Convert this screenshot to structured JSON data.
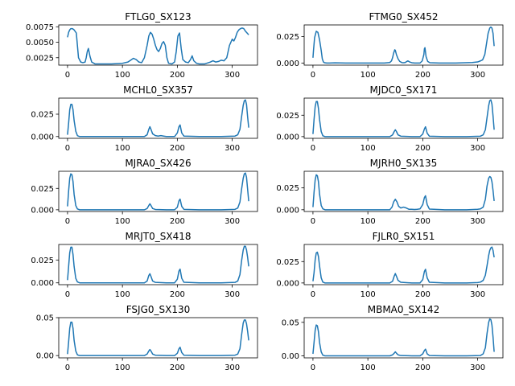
{
  "figure": {
    "line_color": "#1f77b4"
  },
  "chart_data": [
    {
      "type": "line",
      "title": "FTLG0_SX123",
      "xlim": [
        -16,
        346
      ],
      "ylim": [
        0.0013,
        0.0078
      ],
      "xticks": [
        0,
        100,
        200,
        300
      ],
      "yticks": [
        0.0025,
        0.005,
        0.0075
      ],
      "ytick_labels": [
        "0.0025",
        "0.0050",
        "0.0075"
      ],
      "x": [
        0,
        2,
        4,
        6,
        9,
        12,
        16,
        20,
        24,
        28,
        32,
        34,
        36,
        38,
        41,
        44,
        50,
        60,
        80,
        100,
        110,
        115,
        120,
        125,
        130,
        135,
        140,
        145,
        148,
        151,
        154,
        157,
        160,
        163,
        166,
        169,
        172,
        175,
        178,
        181,
        184,
        190,
        195,
        198,
        201,
        204,
        207,
        210,
        215,
        220,
        224,
        227,
        230,
        235,
        240,
        250,
        260,
        265,
        270,
        275,
        280,
        285,
        290,
        295,
        300,
        303,
        306,
        309,
        312,
        315,
        318,
        321,
        324,
        327,
        330
      ],
      "y": [
        0.0058,
        0.0066,
        0.007,
        0.0072,
        0.0072,
        0.007,
        0.0065,
        0.0025,
        0.0018,
        0.0017,
        0.0018,
        0.0025,
        0.0035,
        0.004,
        0.0027,
        0.0018,
        0.0015,
        0.0015,
        0.0015,
        0.0016,
        0.0018,
        0.0021,
        0.0024,
        0.0022,
        0.0018,
        0.0017,
        0.0025,
        0.0045,
        0.006,
        0.0066,
        0.0063,
        0.0055,
        0.0045,
        0.0038,
        0.0035,
        0.004,
        0.0048,
        0.0051,
        0.0045,
        0.0025,
        0.0016,
        0.0015,
        0.0018,
        0.0035,
        0.006,
        0.0065,
        0.004,
        0.0022,
        0.0018,
        0.0017,
        0.0022,
        0.0028,
        0.002,
        0.0016,
        0.0015,
        0.0015,
        0.0018,
        0.002,
        0.0018,
        0.0019,
        0.0021,
        0.002,
        0.0025,
        0.0045,
        0.0055,
        0.0052,
        0.0058,
        0.0066,
        0.007,
        0.0072,
        0.0073,
        0.0072,
        0.0068,
        0.0065,
        0.0062
      ]
    },
    {
      "type": "line",
      "title": "FTMG0_SX452",
      "xlim": [
        -16,
        346
      ],
      "ylim": [
        -0.002,
        0.036
      ],
      "xticks": [
        0,
        100,
        200,
        300
      ],
      "yticks": [
        0.0,
        0.025
      ],
      "ytick_labels": [
        "0.000",
        "0.025"
      ],
      "x": [
        0,
        1,
        3,
        6,
        9,
        12,
        15,
        17,
        19,
        21,
        25,
        30,
        40,
        60,
        80,
        100,
        130,
        140,
        143,
        145,
        147,
        149,
        150,
        152,
        155,
        158,
        162,
        165,
        168,
        171,
        173,
        176,
        180,
        185,
        195,
        199,
        202,
        203,
        204,
        206,
        209,
        213,
        230,
        260,
        290,
        300,
        305,
        309,
        313,
        316,
        319,
        322,
        324,
        326,
        328,
        330
      ],
      "y": [
        0.005,
        0.012,
        0.024,
        0.03,
        0.029,
        0.022,
        0.012,
        0.004,
        0.001,
        0.0003,
        0.0,
        0.0,
        0.0002,
        0.0,
        0.0,
        0.0,
        0.0,
        0.0005,
        0.002,
        0.005,
        0.0095,
        0.0125,
        0.012,
        0.008,
        0.004,
        0.0015,
        0.0004,
        0.0003,
        0.0005,
        0.0015,
        0.002,
        0.001,
        0.0003,
        0.0,
        0.0,
        0.002,
        0.008,
        0.0135,
        0.0145,
        0.006,
        0.0015,
        0.0003,
        0.0,
        0.0,
        0.0005,
        0.001,
        0.002,
        0.003,
        0.008,
        0.018,
        0.028,
        0.033,
        0.034,
        0.033,
        0.028,
        0.016
      ]
    },
    {
      "type": "line",
      "title": "MCHL0_SX357",
      "xlim": [
        -16,
        346
      ],
      "ylim": [
        -0.002,
        0.043
      ],
      "xticks": [
        0,
        100,
        200,
        300
      ],
      "yticks": [
        0.0,
        0.025
      ],
      "ytick_labels": [
        "0.000",
        "0.025"
      ],
      "x": [
        0,
        2,
        4,
        6,
        8,
        10,
        12,
        15,
        18,
        22,
        30,
        60,
        100,
        140,
        145,
        148,
        150,
        152,
        155,
        160,
        165,
        170,
        175,
        180,
        195,
        200,
        203,
        205,
        208,
        212,
        240,
        280,
        305,
        310,
        314,
        317,
        320,
        322,
        324,
        326,
        328,
        330
      ],
      "y": [
        0.002,
        0.015,
        0.03,
        0.036,
        0.036,
        0.03,
        0.018,
        0.006,
        0.001,
        0.0,
        0.0,
        0.0,
        0.0,
        0.0,
        0.002,
        0.008,
        0.011,
        0.008,
        0.003,
        0.001,
        0.0005,
        0.001,
        0.0005,
        0.0,
        0.0,
        0.004,
        0.011,
        0.013,
        0.004,
        0.0005,
        0.0,
        0.0,
        0.0005,
        0.002,
        0.008,
        0.022,
        0.035,
        0.04,
        0.041,
        0.036,
        0.022,
        0.01
      ]
    },
    {
      "type": "line",
      "title": "MJDC0_SX171",
      "xlim": [
        -16,
        346
      ],
      "ylim": [
        -0.002,
        0.045
      ],
      "xticks": [
        0,
        100,
        200,
        300
      ],
      "yticks": [
        0.0,
        0.025
      ],
      "ytick_labels": [
        "0.000",
        "0.025"
      ],
      "x": [
        0,
        2,
        4,
        6,
        8,
        10,
        12,
        15,
        18,
        22,
        30,
        60,
        100,
        140,
        145,
        148,
        150,
        152,
        155,
        160,
        180,
        195,
        200,
        203,
        205,
        208,
        212,
        240,
        280,
        305,
        310,
        314,
        317,
        320,
        322,
        324,
        326,
        328,
        330
      ],
      "y": [
        0.003,
        0.02,
        0.035,
        0.041,
        0.041,
        0.033,
        0.02,
        0.006,
        0.001,
        0.0,
        0.0,
        0.0,
        0.0,
        0.0,
        0.002,
        0.006,
        0.008,
        0.006,
        0.002,
        0.0005,
        0.0,
        0.0,
        0.003,
        0.009,
        0.0115,
        0.004,
        0.0005,
        0.0,
        0.0,
        0.0005,
        0.002,
        0.008,
        0.022,
        0.036,
        0.042,
        0.043,
        0.038,
        0.024,
        0.008
      ]
    },
    {
      "type": "line",
      "title": "MJRA0_SX426",
      "xlim": [
        -16,
        346
      ],
      "ylim": [
        -0.002,
        0.045
      ],
      "xticks": [
        0,
        100,
        200,
        300
      ],
      "yticks": [
        0.0,
        0.025
      ],
      "ytick_labels": [
        "0.000",
        "0.025"
      ],
      "x": [
        0,
        2,
        4,
        6,
        8,
        10,
        12,
        15,
        18,
        22,
        30,
        60,
        100,
        140,
        145,
        148,
        150,
        152,
        155,
        160,
        180,
        195,
        200,
        203,
        205,
        208,
        212,
        240,
        280,
        305,
        310,
        314,
        317,
        320,
        322,
        324,
        326,
        328,
        330
      ],
      "y": [
        0.004,
        0.022,
        0.037,
        0.042,
        0.041,
        0.033,
        0.018,
        0.005,
        0.001,
        0.0,
        0.0,
        0.0,
        0.0,
        0.0,
        0.0015,
        0.005,
        0.007,
        0.005,
        0.0015,
        0.0004,
        0.0,
        0.0,
        0.003,
        0.0105,
        0.0125,
        0.004,
        0.0005,
        0.0,
        0.0,
        0.0005,
        0.002,
        0.009,
        0.024,
        0.037,
        0.042,
        0.043,
        0.038,
        0.024,
        0.01
      ]
    },
    {
      "type": "line",
      "title": "MJRH0_SX135",
      "xlim": [
        -16,
        346
      ],
      "ylim": [
        -0.002,
        0.044
      ],
      "xticks": [
        0,
        100,
        200,
        300
      ],
      "yticks": [
        0.0,
        0.025
      ],
      "ytick_labels": [
        "0.000",
        "0.025"
      ],
      "x": [
        0,
        2,
        4,
        6,
        8,
        10,
        12,
        15,
        18,
        22,
        30,
        60,
        100,
        140,
        144,
        147,
        150,
        153,
        156,
        160,
        165,
        170,
        175,
        180,
        185,
        190,
        195,
        200,
        203,
        205,
        208,
        212,
        240,
        280,
        300,
        305,
        310,
        314,
        317,
        320,
        322,
        324,
        326,
        328,
        330
      ],
      "y": [
        0.003,
        0.02,
        0.034,
        0.04,
        0.039,
        0.032,
        0.018,
        0.005,
        0.001,
        0.0,
        0.0,
        0.0,
        0.0,
        0.0,
        0.003,
        0.009,
        0.012,
        0.009,
        0.004,
        0.002,
        0.003,
        0.002,
        0.0005,
        0.0005,
        0.0003,
        0.0005,
        0.001,
        0.006,
        0.014,
        0.016,
        0.006,
        0.0008,
        0.0,
        0.0,
        0.0005,
        0.001,
        0.003,
        0.012,
        0.027,
        0.036,
        0.038,
        0.037,
        0.032,
        0.022,
        0.01
      ]
    },
    {
      "type": "line",
      "title": "MRJT0_SX418",
      "xlim": [
        -16,
        346
      ],
      "ylim": [
        -0.002,
        0.042
      ],
      "xticks": [
        0,
        100,
        200,
        300
      ],
      "yticks": [
        0.0,
        0.025
      ],
      "ytick_labels": [
        "0.000",
        "0.025"
      ],
      "x": [
        0,
        2,
        4,
        6,
        8,
        10,
        12,
        15,
        18,
        22,
        30,
        60,
        100,
        140,
        145,
        148,
        150,
        152,
        155,
        160,
        180,
        195,
        200,
        203,
        205,
        208,
        212,
        240,
        280,
        305,
        310,
        314,
        317,
        320,
        322,
        324,
        326,
        328,
        330
      ],
      "y": [
        0.003,
        0.018,
        0.033,
        0.039,
        0.039,
        0.031,
        0.018,
        0.005,
        0.001,
        0.0,
        0.0,
        0.0,
        0.0,
        0.0,
        0.002,
        0.008,
        0.01,
        0.007,
        0.002,
        0.0005,
        0.0,
        0.0,
        0.004,
        0.013,
        0.015,
        0.005,
        0.0006,
        0.0,
        0.0,
        0.0005,
        0.002,
        0.009,
        0.024,
        0.036,
        0.04,
        0.04,
        0.036,
        0.028,
        0.018
      ]
    },
    {
      "type": "line",
      "title": "FJLR0_SX151",
      "xlim": [
        -16,
        346
      ],
      "ylim": [
        -0.002,
        0.045
      ],
      "xticks": [
        0,
        100,
        200,
        300
      ],
      "yticks": [
        0.0,
        0.025
      ],
      "ytick_labels": [
        "0.000",
        "0.025"
      ],
      "x": [
        0,
        2,
        4,
        6,
        8,
        10,
        12,
        15,
        18,
        22,
        30,
        60,
        100,
        140,
        145,
        148,
        150,
        152,
        155,
        160,
        180,
        195,
        200,
        203,
        205,
        208,
        212,
        240,
        280,
        300,
        305,
        310,
        314,
        317,
        320,
        322,
        324,
        326,
        328,
        330
      ],
      "y": [
        0.002,
        0.012,
        0.027,
        0.035,
        0.036,
        0.031,
        0.02,
        0.006,
        0.001,
        0.0,
        0.0,
        0.0,
        0.0,
        0.0,
        0.002,
        0.008,
        0.011,
        0.008,
        0.003,
        0.0008,
        0.0,
        0.0,
        0.004,
        0.0135,
        0.016,
        0.006,
        0.0008,
        0.0,
        0.0,
        0.0005,
        0.001,
        0.003,
        0.009,
        0.02,
        0.032,
        0.038,
        0.041,
        0.042,
        0.038,
        0.03
      ]
    },
    {
      "type": "line",
      "title": "FSJG0_SX130",
      "xlim": [
        -16,
        346
      ],
      "ylim": [
        -0.003,
        0.05
      ],
      "xticks": [
        0,
        100,
        200,
        300
      ],
      "yticks": [
        0.0,
        0.05
      ],
      "ytick_labels": [
        "0.00",
        "0.05"
      ],
      "x": [
        0,
        2,
        4,
        6,
        8,
        10,
        12,
        15,
        18,
        22,
        30,
        60,
        100,
        140,
        145,
        148,
        150,
        152,
        155,
        160,
        180,
        195,
        200,
        203,
        205,
        208,
        212,
        240,
        280,
        305,
        310,
        314,
        317,
        320,
        322,
        324,
        326,
        328,
        330
      ],
      "y": [
        0.002,
        0.018,
        0.036,
        0.044,
        0.044,
        0.036,
        0.02,
        0.006,
        0.001,
        0.0,
        0.0,
        0.0,
        0.0,
        0.0,
        0.002,
        0.006,
        0.008,
        0.006,
        0.002,
        0.0005,
        0.0,
        0.0,
        0.003,
        0.009,
        0.011,
        0.004,
        0.0005,
        0.0,
        0.0,
        0.0005,
        0.002,
        0.009,
        0.027,
        0.043,
        0.047,
        0.047,
        0.042,
        0.032,
        0.02
      ]
    },
    {
      "type": "line",
      "title": "MBMA0_SX142",
      "xlim": [
        -16,
        346
      ],
      "ylim": [
        -0.003,
        0.057
      ],
      "xticks": [
        0,
        100,
        200,
        300
      ],
      "yticks": [
        0.0,
        0.05
      ],
      "ytick_labels": [
        "0.00",
        "0.05"
      ],
      "x": [
        0,
        2,
        4,
        6,
        8,
        10,
        12,
        15,
        18,
        22,
        30,
        60,
        100,
        140,
        145,
        148,
        150,
        152,
        155,
        160,
        180,
        195,
        200,
        203,
        205,
        208,
        212,
        240,
        280,
        305,
        310,
        314,
        317,
        320,
        322,
        324,
        326,
        328,
        330
      ],
      "y": [
        0.003,
        0.02,
        0.038,
        0.046,
        0.045,
        0.036,
        0.02,
        0.006,
        0.001,
        0.0,
        0.0,
        0.0,
        0.0,
        0.0,
        0.0015,
        0.004,
        0.006,
        0.004,
        0.0015,
        0.0004,
        0.0,
        0.0,
        0.003,
        0.008,
        0.01,
        0.003,
        0.0005,
        0.0,
        0.0,
        0.0005,
        0.003,
        0.012,
        0.033,
        0.05,
        0.055,
        0.054,
        0.046,
        0.028,
        0.006
      ]
    }
  ]
}
